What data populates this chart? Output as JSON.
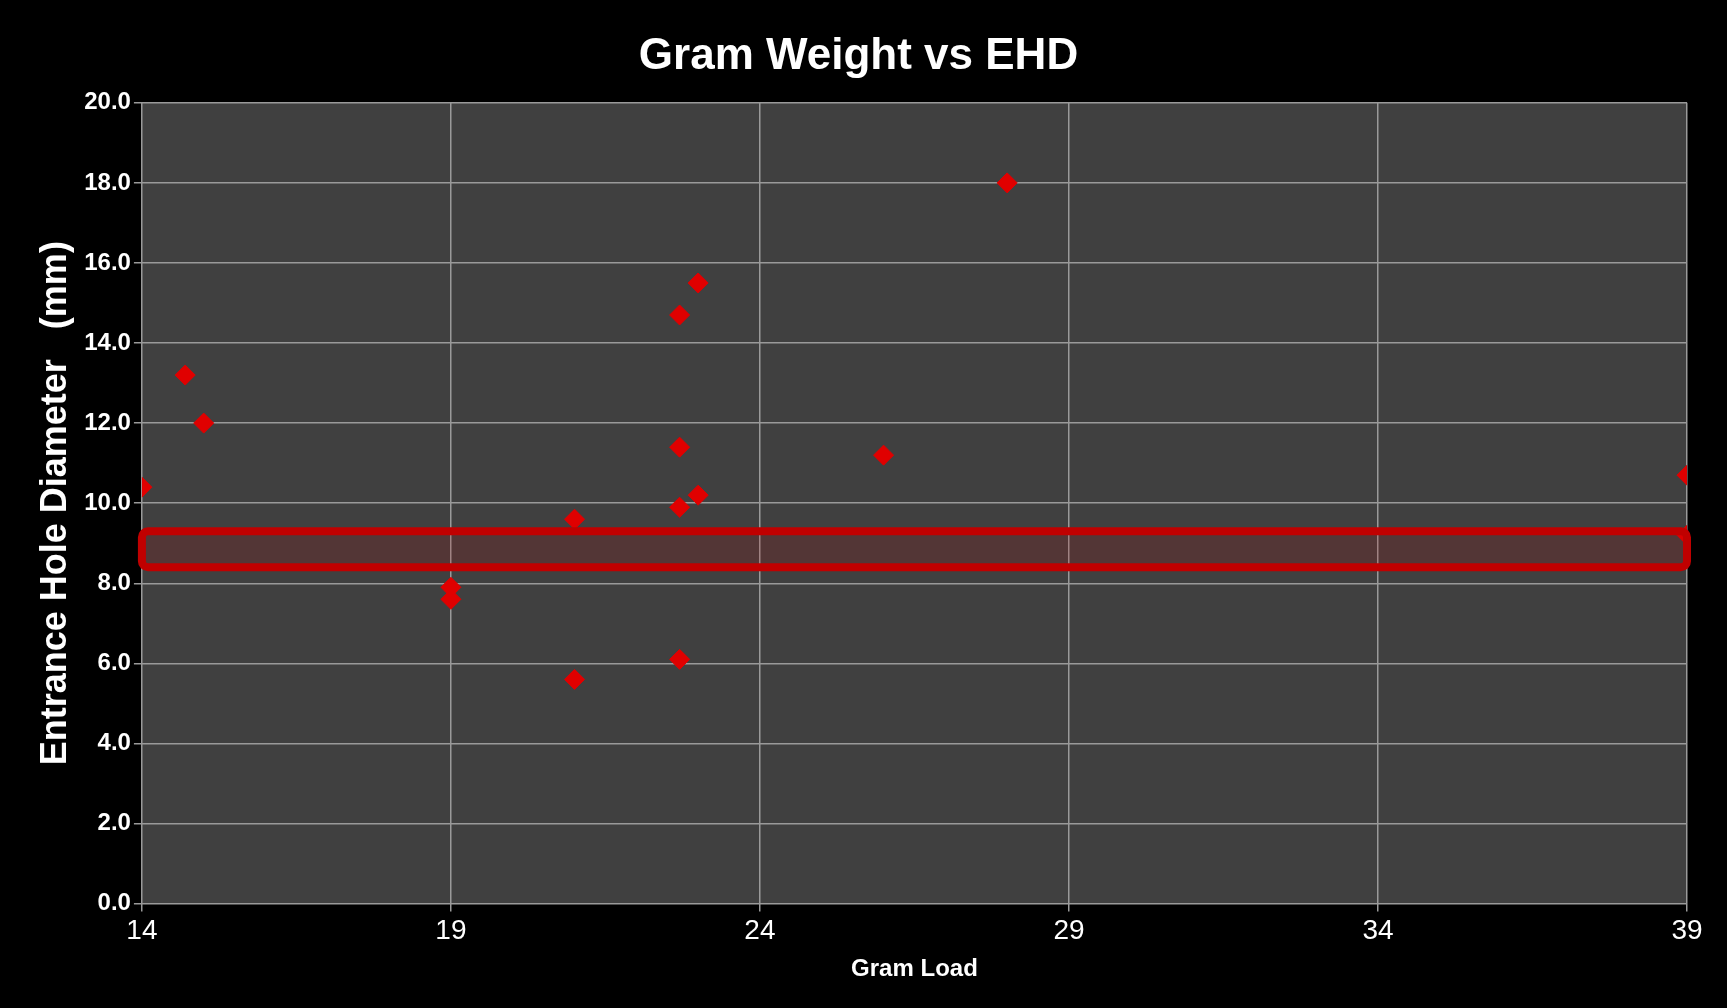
{
  "chart_data": {
    "type": "scatter",
    "title": "Gram Weight vs EHD",
    "xlabel": "Gram Load",
    "ylabel": "Entrance Hole Diameter   (mm)",
    "x": [
      14,
      14.7,
      15.0,
      19,
      19,
      21,
      21,
      22.7,
      23.0,
      22.7,
      22.7,
      23.0,
      22.7,
      26.0,
      28.0,
      39,
      39
    ],
    "series": [
      {
        "color": "#e00000",
        "values": [
          10.4,
          13.2,
          12.0,
          7.9,
          7.6,
          9.6,
          5.6,
          14.7,
          15.5,
          11.4,
          9.9,
          10.2,
          6.1,
          11.2,
          18.0,
          10.7,
          9.2
        ]
      }
    ],
    "marker": "diamond",
    "grid": true,
    "legend": false,
    "xlim": [
      14,
      39
    ],
    "xticks": [
      14,
      19,
      24,
      29,
      34,
      39
    ],
    "ylim": [
      0,
      20
    ],
    "yticks": [
      {
        "value": 0,
        "label": "0.0"
      },
      {
        "value": 2,
        "label": "2.0"
      },
      {
        "value": 4,
        "label": "4.0"
      },
      {
        "value": 6,
        "label": "6.0"
      },
      {
        "value": 8,
        "label": "8.0"
      },
      {
        "value": 10,
        "label": "10.0"
      },
      {
        "value": 12,
        "label": "12.0"
      },
      {
        "value": 14,
        "label": "14.0"
      },
      {
        "value": 16,
        "label": "16.0"
      },
      {
        "value": 18,
        "label": "18.0"
      },
      {
        "value": 20,
        "label": "20.0"
      }
    ],
    "bands": [
      {
        "axis": "y",
        "from": 8.4,
        "to": 9.3,
        "color": "#c00000"
      }
    ]
  }
}
